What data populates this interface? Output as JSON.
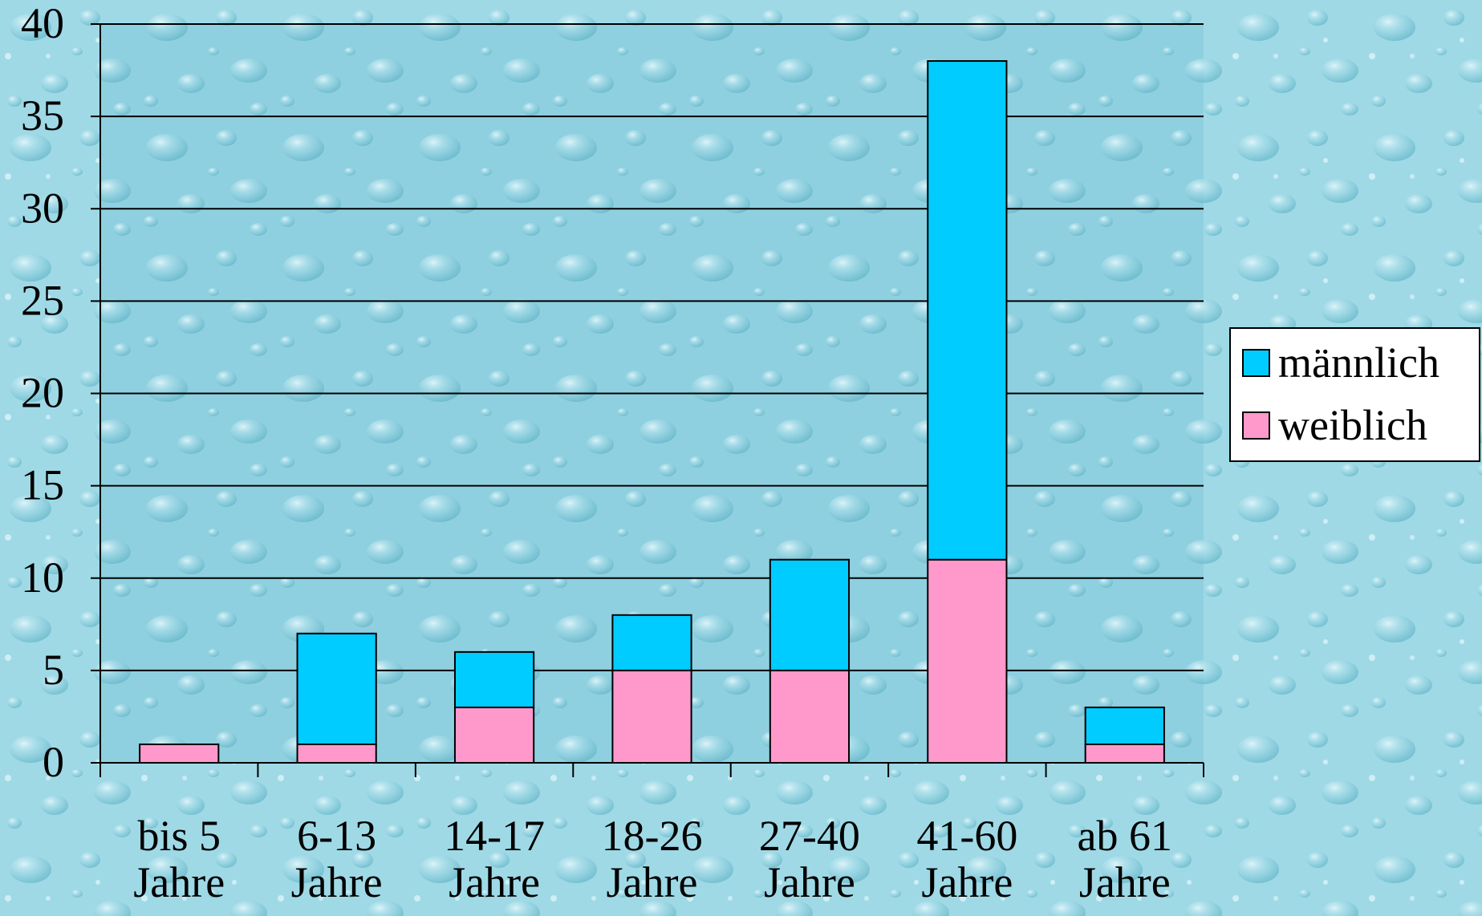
{
  "chart_data": {
    "type": "bar",
    "stacked": true,
    "categories": [
      [
        "bis 5",
        "Jahre"
      ],
      [
        "6-13",
        "Jahre"
      ],
      [
        "14-17",
        "Jahre"
      ],
      [
        "18-26",
        "Jahre"
      ],
      [
        "27-40",
        "Jahre"
      ],
      [
        "41-60",
        "Jahre"
      ],
      [
        "ab 61",
        "Jahre"
      ]
    ],
    "series": [
      {
        "name": "weiblich",
        "color": "#ff99cc",
        "values": [
          1,
          1,
          3,
          5,
          5,
          11,
          1
        ]
      },
      {
        "name": "männlich",
        "color": "#00ccff",
        "values": [
          0,
          6,
          3,
          3,
          6,
          27,
          2
        ]
      }
    ],
    "legend_order": [
      "männlich",
      "weiblich"
    ],
    "ylim": [
      0,
      40
    ],
    "yticks": [
      0,
      5,
      10,
      15,
      20,
      25,
      30,
      35,
      40
    ],
    "grid": true,
    "legend": "right",
    "background": "water-drop texture"
  }
}
